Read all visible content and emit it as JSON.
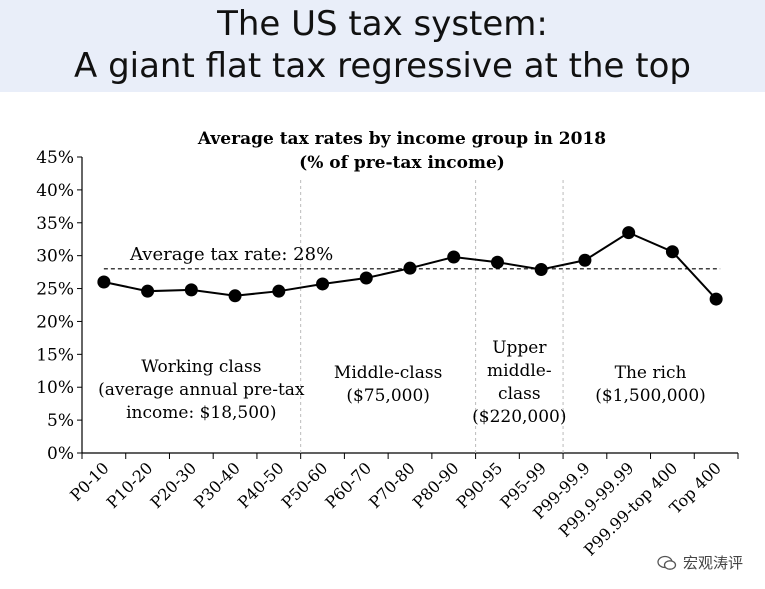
{
  "slide": {
    "title_line1": "The US tax system:",
    "title_line2": "A giant flat tax regressive at the top"
  },
  "chart_data": {
    "type": "line",
    "title": "Average tax rates by income group in 2018",
    "subtitle": "(% of pre-tax income)",
    "categories": [
      "P0-10",
      "P10-20",
      "P20-30",
      "P30-40",
      "P40-50",
      "P50-60",
      "P60-70",
      "P70-80",
      "P80-90",
      "P90-95",
      "P95-99",
      "P99-99.9",
      "P99.9-99.99",
      "P99.99-top 400",
      "Top 400"
    ],
    "series": [
      {
        "values": [
          26.0,
          24.6,
          24.8,
          23.9,
          24.6,
          25.7,
          26.6,
          28.1,
          29.8,
          29.0,
          27.9,
          29.3,
          33.5,
          30.6,
          23.4
        ]
      }
    ],
    "ylim": [
      0,
      45
    ],
    "yticks": [
      "0%",
      "5%",
      "10%",
      "15%",
      "20%",
      "25%",
      "30%",
      "35%",
      "40%",
      "45%"
    ],
    "reference_line": {
      "value": 28,
      "label": "Average tax rate: 28%"
    },
    "dividers_after": [
      "P40-50",
      "P80-90",
      "P95-99"
    ],
    "groups": [
      {
        "lines": [
          "Working class",
          "(average annual pre-tax",
          "income: $18,500)"
        ]
      },
      {
        "lines": [
          "Middle-class",
          "($75,000)"
        ]
      },
      {
        "lines": [
          "Upper",
          "middle-",
          "class",
          "($220,000)"
        ]
      },
      {
        "lines": [
          "The rich",
          "($1,500,000)"
        ]
      }
    ],
    "grid": false,
    "colors": {
      "line": "#000000",
      "divider": "#bbbbbb",
      "banner": "#e9eef9"
    }
  },
  "watermark": {
    "text": "宏观涛评",
    "icon": "wechat-icon"
  }
}
